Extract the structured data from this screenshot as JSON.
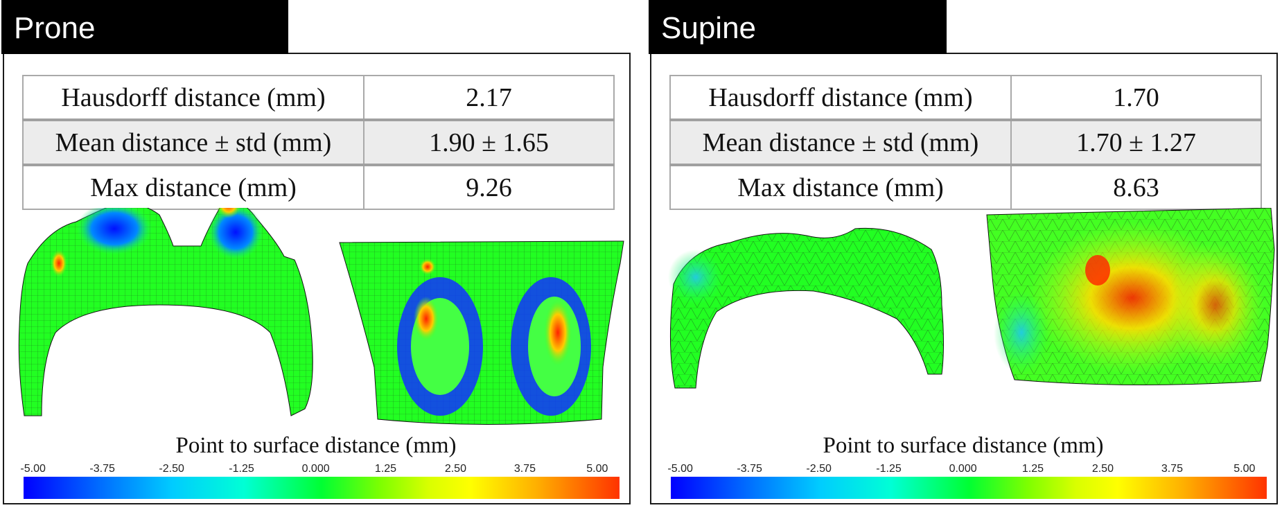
{
  "panels": [
    {
      "label": "Prone",
      "metrics": [
        {
          "name": "Hausdorff distance (mm)",
          "value": "2.17"
        },
        {
          "name": "Mean distance ±  std (mm)",
          "value": "1.90 ± 1.65"
        },
        {
          "name": "Max distance (mm)",
          "value": "9.26"
        }
      ],
      "colorbar_title": "Point to surface distance (mm)",
      "colorbar_ticks": [
        "-5.00",
        "-3.75",
        "-2.50",
        "-1.25",
        "0.000",
        "1.25",
        "2.50",
        "3.75",
        "5.00"
      ]
    },
    {
      "label": "Supine",
      "metrics": [
        {
          "name": "Hausdorff distance (mm)",
          "value": "1.70"
        },
        {
          "name": "Mean distance ± std (mm)",
          "value": "1.70 ± 1.27"
        },
        {
          "name": "Max distance (mm)",
          "value": "8.63"
        }
      ],
      "colorbar_title": "Point to surface distance (mm)",
      "colorbar_ticks": [
        "-5.00",
        "-3.75",
        "-2.50",
        "-1.25",
        "0.000",
        "1.25",
        "2.50",
        "3.75",
        "5.00"
      ]
    }
  ],
  "colorscale": {
    "min": -5.0,
    "max": 5.0,
    "colors": [
      "#0000ff",
      "#00ccff",
      "#00ff33",
      "#ffff00",
      "#ff3300"
    ]
  }
}
